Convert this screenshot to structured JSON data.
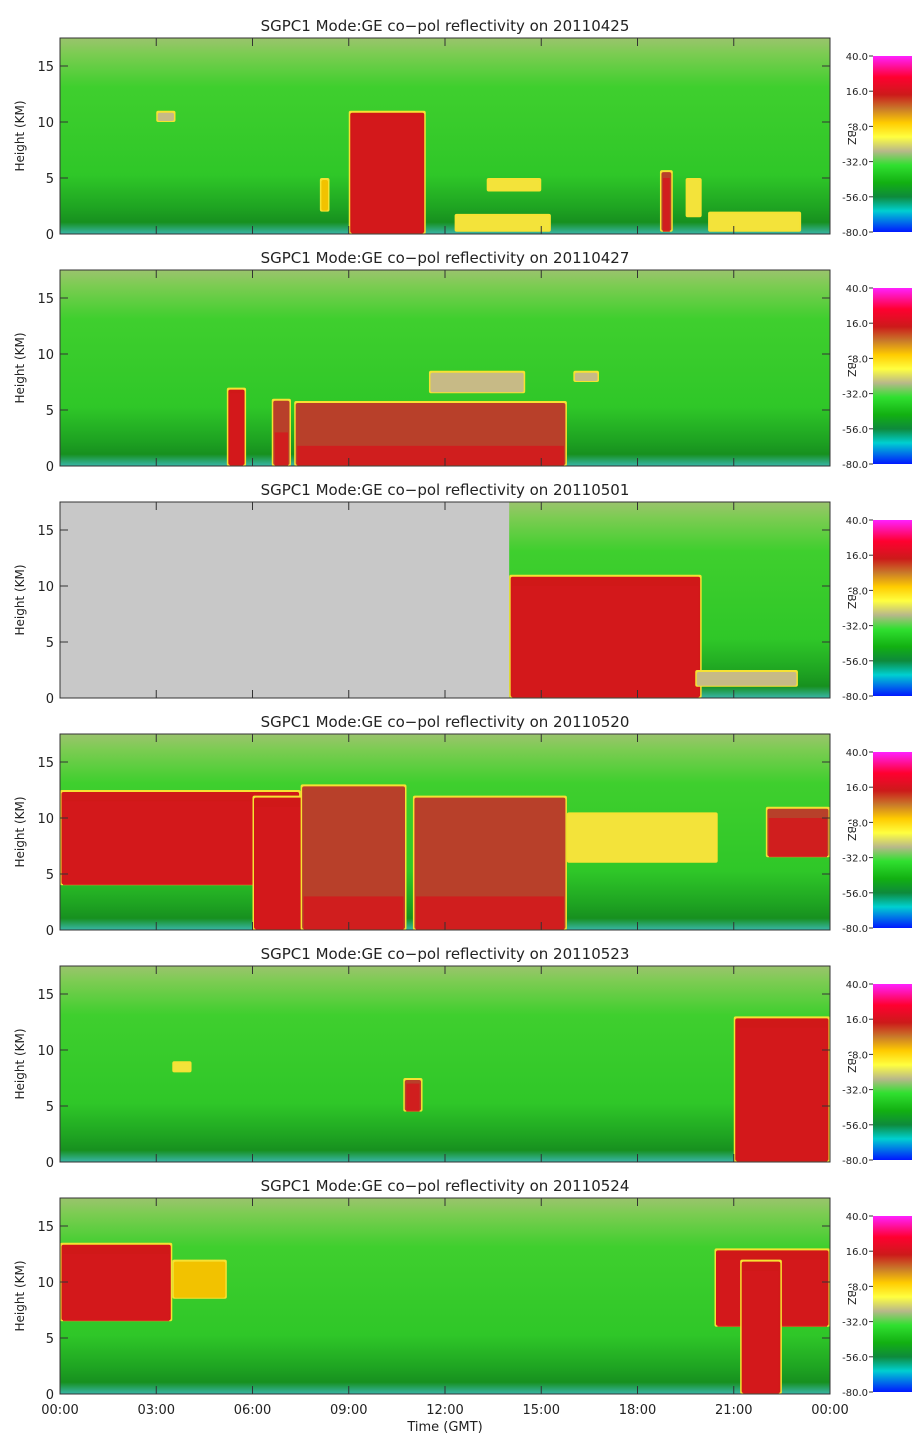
{
  "figure": {
    "xlabel": "Time (GMT)",
    "x_ticks": [
      "00:00",
      "03:00",
      "06:00",
      "09:00",
      "12:00",
      "15:00",
      "18:00",
      "21:00",
      "00:00"
    ]
  },
  "chart_data": [
    {
      "type": "heatmap",
      "title": "SGPC1  Mode:GE   co−pol  reflectivity   on  20110425",
      "site": "SGPC1",
      "mode": "GE",
      "product": "co-pol reflectivity",
      "date": "20110425",
      "ylabel": "Height (KM)",
      "y_ticks": [
        0,
        5,
        10,
        15
      ],
      "ylim": [
        0,
        17.5
      ],
      "xlim_hours": [
        0,
        24
      ],
      "colorbar": {
        "label": "dBZ",
        "ticks": [
          "40.0",
          "16.0",
          "-8.0",
          "-32.0",
          "-56.0",
          "-80.0"
        ],
        "range": [
          -80,
          40
        ]
      },
      "missing_data_hours": [],
      "echoes": [
        {
          "start_h": 9.0,
          "end_h": 11.4,
          "base_km": 0.0,
          "top_km": 11.0,
          "core_top_km": 10.5,
          "dbz": 10
        },
        {
          "start_h": 8.1,
          "end_h": 8.4,
          "base_km": 2.0,
          "top_km": 5.0,
          "core_top_km": 0,
          "dbz": -10
        },
        {
          "start_h": 3.0,
          "end_h": 3.6,
          "base_km": 10.0,
          "top_km": 11.0,
          "core_top_km": 0,
          "dbz": -25
        },
        {
          "start_h": 13.3,
          "end_h": 15.0,
          "base_km": 3.8,
          "top_km": 5.0,
          "core_top_km": 0,
          "dbz": -15
        },
        {
          "start_h": 12.3,
          "end_h": 15.3,
          "base_km": 0.2,
          "top_km": 1.8,
          "core_top_km": 0,
          "dbz": -15
        },
        {
          "start_h": 18.7,
          "end_h": 19.1,
          "base_km": 0.2,
          "top_km": 5.7,
          "core_top_km": 5.0,
          "dbz": 5
        },
        {
          "start_h": 19.5,
          "end_h": 20.0,
          "base_km": 1.5,
          "top_km": 5.0,
          "core_top_km": 0,
          "dbz": -15
        },
        {
          "start_h": 20.2,
          "end_h": 23.1,
          "base_km": 0.2,
          "top_km": 2.0,
          "core_top_km": 0,
          "dbz": -15
        }
      ]
    },
    {
      "type": "heatmap",
      "title": "SGPC1  Mode:GE   co−pol  reflectivity   on  20110427",
      "site": "SGPC1",
      "mode": "GE",
      "product": "co-pol reflectivity",
      "date": "20110427",
      "ylabel": "Height (KM)",
      "y_ticks": [
        0,
        5,
        10,
        15
      ],
      "ylim": [
        0,
        17.5
      ],
      "xlim_hours": [
        0,
        24
      ],
      "colorbar": {
        "label": "dBZ",
        "ticks": [
          "40.0",
          "16.0",
          "-8.0",
          "-32.0",
          "-56.0",
          "-80.0"
        ],
        "range": [
          -80,
          40
        ]
      },
      "missing_data_hours": [],
      "echoes": [
        {
          "start_h": 5.2,
          "end_h": 5.8,
          "base_km": 0.0,
          "top_km": 7.0,
          "core_top_km": 6.5,
          "dbz": 10
        },
        {
          "start_h": 6.6,
          "end_h": 7.2,
          "base_km": 0.0,
          "top_km": 6.0,
          "core_top_km": 3.0,
          "dbz": 5
        },
        {
          "start_h": 7.3,
          "end_h": 15.8,
          "base_km": 0.0,
          "top_km": 5.8,
          "core_top_km": 1.8,
          "dbz": 8
        },
        {
          "start_h": 11.5,
          "end_h": 14.5,
          "base_km": 6.5,
          "top_km": 8.5,
          "core_top_km": 0,
          "dbz": -30
        },
        {
          "start_h": 16.0,
          "end_h": 16.8,
          "base_km": 7.5,
          "top_km": 8.5,
          "core_top_km": 0,
          "dbz": -30
        }
      ]
    },
    {
      "type": "heatmap",
      "title": "SGPC1  Mode:GE   co−pol  reflectivity   on  20110501",
      "site": "SGPC1",
      "mode": "GE",
      "product": "co-pol reflectivity",
      "date": "20110501",
      "ylabel": "Height (KM)",
      "y_ticks": [
        0,
        5,
        10,
        15
      ],
      "ylim": [
        0,
        17.5
      ],
      "xlim_hours": [
        0,
        24
      ],
      "colorbar": {
        "label": "dBZ",
        "ticks": [
          "40.0",
          "16.0",
          "-8.0",
          "-32.0",
          "-56.0",
          "-80.0"
        ],
        "range": [
          -80,
          40
        ]
      },
      "missing_data_hours": [
        0,
        14.0
      ],
      "echoes": [
        {
          "start_h": 14.0,
          "end_h": 20.0,
          "base_km": 0.0,
          "top_km": 11.0,
          "core_top_km": 10.0,
          "dbz": 10
        },
        {
          "start_h": 19.8,
          "end_h": 23.0,
          "base_km": 1.0,
          "top_km": 2.5,
          "core_top_km": 0,
          "dbz": -30
        }
      ]
    },
    {
      "type": "heatmap",
      "title": "SGPC1  Mode:GE   co−pol  reflectivity   on  20110520",
      "site": "SGPC1",
      "mode": "GE",
      "product": "co-pol reflectivity",
      "date": "20110520",
      "ylabel": "Height (KM)",
      "y_ticks": [
        0,
        5,
        10,
        15
      ],
      "ylim": [
        0,
        17.5
      ],
      "xlim_hours": [
        0,
        24
      ],
      "colorbar": {
        "label": "dBZ",
        "ticks": [
          "40.0",
          "16.0",
          "-8.0",
          "-32.0",
          "-56.0",
          "-80.0"
        ],
        "range": [
          -80,
          40
        ]
      },
      "missing_data_hours": [],
      "echoes": [
        {
          "start_h": 0.0,
          "end_h": 7.5,
          "base_km": 4.0,
          "top_km": 12.5,
          "core_top_km": 11.5,
          "dbz": 12
        },
        {
          "start_h": 6.0,
          "end_h": 7.8,
          "base_km": 0.0,
          "top_km": 12.0,
          "core_top_km": 11.0,
          "dbz": 12
        },
        {
          "start_h": 7.5,
          "end_h": 10.8,
          "base_km": 0.0,
          "top_km": 13.0,
          "core_top_km": 3.0,
          "dbz": 5
        },
        {
          "start_h": 11.0,
          "end_h": 15.8,
          "base_km": 0.0,
          "top_km": 12.0,
          "core_top_km": 3.0,
          "dbz": 5
        },
        {
          "start_h": 15.8,
          "end_h": 20.5,
          "base_km": 6.0,
          "top_km": 10.5,
          "core_top_km": 0,
          "dbz": -15
        },
        {
          "start_h": 22.0,
          "end_h": 24.0,
          "base_km": 6.5,
          "top_km": 11.0,
          "core_top_km": 10.0,
          "dbz": 5
        }
      ]
    },
    {
      "type": "heatmap",
      "title": "SGPC1  Mode:GE   co−pol  reflectivity   on  20110523",
      "site": "SGPC1",
      "mode": "GE",
      "product": "co-pol reflectivity",
      "date": "20110523",
      "ylabel": "Height (KM)",
      "y_ticks": [
        0,
        5,
        10,
        15
      ],
      "ylim": [
        0,
        17.5
      ],
      "xlim_hours": [
        0,
        24
      ],
      "colorbar": {
        "label": "dBZ",
        "ticks": [
          "40.0",
          "16.0",
          "-8.0",
          "-32.0",
          "-56.0",
          "-80.0"
        ],
        "range": [
          -80,
          40
        ]
      },
      "missing_data_hours": [],
      "echoes": [
        {
          "start_h": 3.5,
          "end_h": 4.1,
          "base_km": 8.0,
          "top_km": 9.0,
          "core_top_km": 0,
          "dbz": -20
        },
        {
          "start_h": 10.7,
          "end_h": 11.3,
          "base_km": 4.5,
          "top_km": 7.5,
          "core_top_km": 7.0,
          "dbz": 8
        },
        {
          "start_h": 21.0,
          "end_h": 24.0,
          "base_km": 0.0,
          "top_km": 13.0,
          "core_top_km": 12.0,
          "dbz": 12
        }
      ]
    },
    {
      "type": "heatmap",
      "title": "SGPC1  Mode:GE   co−pol  reflectivity   on  20110524",
      "site": "SGPC1",
      "mode": "GE",
      "product": "co-pol reflectivity",
      "date": "20110524",
      "ylabel": "Height (KM)",
      "y_ticks": [
        0,
        5,
        10,
        15
      ],
      "ylim": [
        0,
        17.5
      ],
      "xlim_hours": [
        0,
        24
      ],
      "colorbar": {
        "label": "dBZ",
        "ticks": [
          "40.0",
          "16.0",
          "-8.0",
          "-32.0",
          "-56.0",
          "-80.0"
        ],
        "range": [
          -80,
          40
        ]
      },
      "missing_data_hours": [],
      "echoes": [
        {
          "start_h": 0.0,
          "end_h": 3.5,
          "base_km": 6.5,
          "top_km": 13.5,
          "core_top_km": 12.5,
          "dbz": 10
        },
        {
          "start_h": 3.5,
          "end_h": 5.2,
          "base_km": 8.5,
          "top_km": 12.0,
          "core_top_km": 0,
          "dbz": -10
        },
        {
          "start_h": 20.4,
          "end_h": 24.0,
          "base_km": 6.0,
          "top_km": 13.0,
          "core_top_km": 12.0,
          "dbz": 10
        },
        {
          "start_h": 21.2,
          "end_h": 22.5,
          "base_km": 0.0,
          "top_km": 12.0,
          "core_top_km": 11.0,
          "dbz": 12
        }
      ]
    }
  ]
}
